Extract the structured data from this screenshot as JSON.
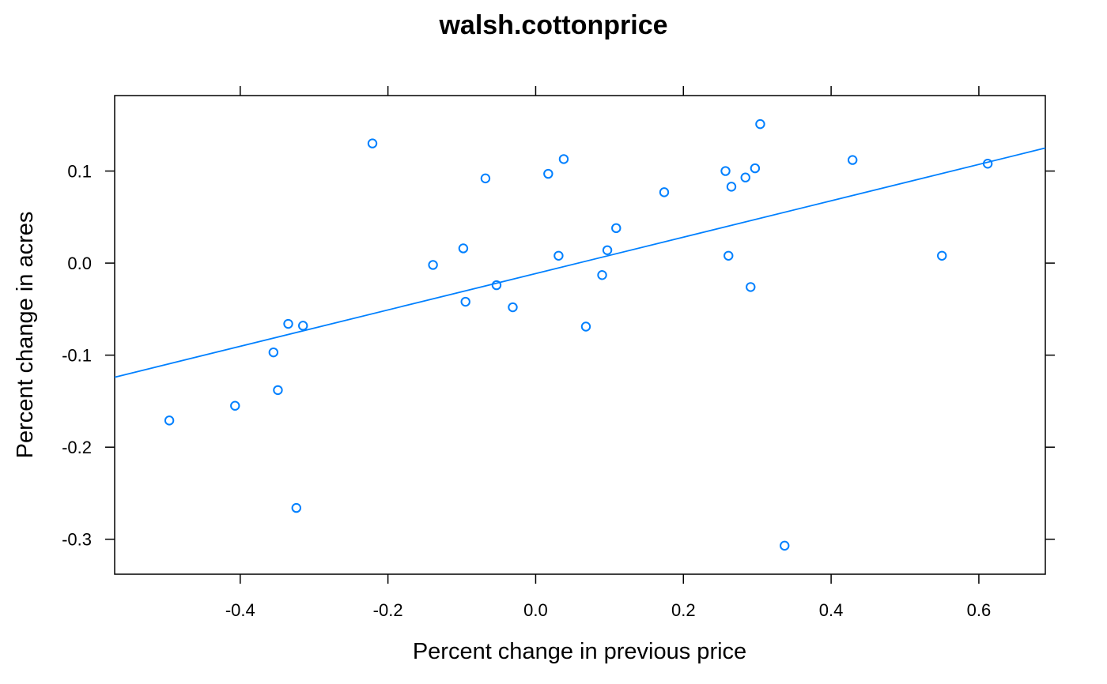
{
  "chart_data": {
    "type": "scatter",
    "title": "walsh.cottonprice",
    "xlabel": "Percent change in previous price",
    "ylabel": "Percent change in acres",
    "xlim": [
      -0.57,
      0.69
    ],
    "ylim": [
      -0.338,
      0.182
    ],
    "x_ticks": [
      -0.4,
      -0.2,
      0.0,
      0.2,
      0.4,
      0.6
    ],
    "x_tick_labels": [
      "-0.4",
      "-0.2",
      "0.0",
      "0.2",
      "0.4",
      "0.6"
    ],
    "y_ticks": [
      -0.3,
      -0.2,
      -0.1,
      0.0,
      0.1
    ],
    "y_tick_labels": [
      "-0.3",
      "-0.2",
      "-0.1",
      "0.0",
      "0.1"
    ],
    "grid": false,
    "colors": {
      "points": "#0080ff",
      "fit_line": "#0080ff",
      "frame": "#000000"
    },
    "series": [
      {
        "points": [
          {
            "x": -0.496,
            "y": -0.171
          },
          {
            "x": -0.407,
            "y": -0.155
          },
          {
            "x": -0.355,
            "y": -0.097
          },
          {
            "x": -0.349,
            "y": -0.138
          },
          {
            "x": -0.335,
            "y": -0.066
          },
          {
            "x": -0.324,
            "y": -0.266
          },
          {
            "x": -0.315,
            "y": -0.068
          },
          {
            "x": -0.221,
            "y": 0.13
          },
          {
            "x": -0.139,
            "y": -0.002
          },
          {
            "x": -0.098,
            "y": 0.016
          },
          {
            "x": -0.095,
            "y": -0.042
          },
          {
            "x": -0.068,
            "y": 0.092
          },
          {
            "x": -0.053,
            "y": -0.024
          },
          {
            "x": -0.031,
            "y": -0.048
          },
          {
            "x": 0.017,
            "y": 0.097
          },
          {
            "x": 0.031,
            "y": 0.008
          },
          {
            "x": 0.038,
            "y": 0.113
          },
          {
            "x": 0.068,
            "y": -0.069
          },
          {
            "x": 0.09,
            "y": -0.013
          },
          {
            "x": 0.097,
            "y": 0.014
          },
          {
            "x": 0.109,
            "y": 0.038
          },
          {
            "x": 0.174,
            "y": 0.077
          },
          {
            "x": 0.257,
            "y": 0.1
          },
          {
            "x": 0.261,
            "y": 0.008
          },
          {
            "x": 0.265,
            "y": 0.083
          },
          {
            "x": 0.284,
            "y": 0.093
          },
          {
            "x": 0.291,
            "y": -0.026
          },
          {
            "x": 0.297,
            "y": 0.103
          },
          {
            "x": 0.304,
            "y": 0.151
          },
          {
            "x": 0.337,
            "y": -0.307
          },
          {
            "x": 0.429,
            "y": 0.112
          },
          {
            "x": 0.55,
            "y": 0.008
          },
          {
            "x": 0.612,
            "y": 0.108
          }
        ]
      }
    ],
    "fit_line": {
      "x": [
        -0.57,
        0.69
      ],
      "y": [
        -0.124,
        0.125
      ]
    }
  }
}
